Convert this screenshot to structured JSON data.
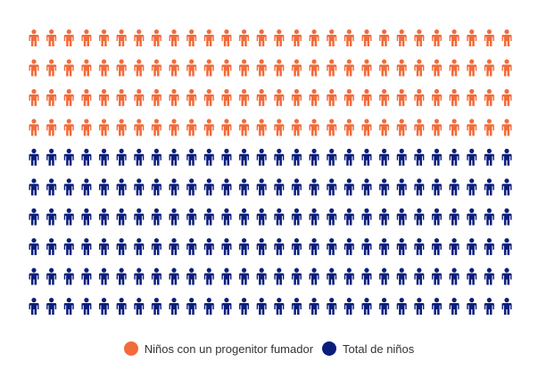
{
  "chart_data": {
    "type": "pictograph",
    "icon": "person-icon",
    "columns": 28,
    "rows": 10,
    "total_icons": 280,
    "series": [
      {
        "name": "Niños con un progenitor fumador",
        "count": 112,
        "color": "#F26B3A"
      },
      {
        "name": "Total de niños",
        "count": 168,
        "color": "#0B1E7A"
      }
    ],
    "legend_position": "bottom-center"
  }
}
